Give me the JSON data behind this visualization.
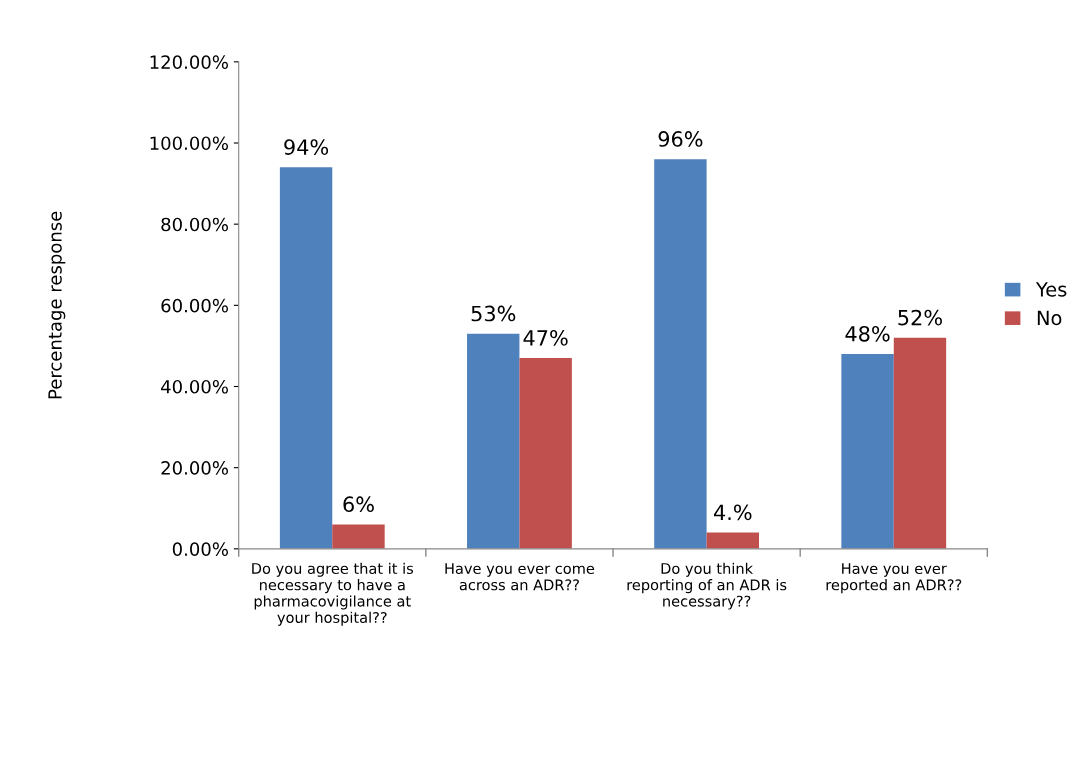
{
  "chart_data": {
    "type": "bar",
    "ylabel": "Percentage response",
    "categories": [
      "Do you agree that it is\nnecessary to have a\npharmacovigilance at\nyour hospital??",
      "Have you ever come\nacross an ADR??",
      "Do you think\nreporting of an ADR is\nnecessary??",
      "Have you ever\nreported an ADR??"
    ],
    "series": [
      {
        "name": "Yes",
        "color": "#4f81bd",
        "values": [
          94,
          53,
          96,
          48
        ],
        "value_labels": [
          "94%",
          "53%",
          "96%",
          "48%"
        ]
      },
      {
        "name": "No",
        "color": "#c0504d",
        "values": [
          6,
          47,
          4,
          52
        ],
        "value_labels": [
          "6%",
          "47%",
          "4.%",
          "52%"
        ]
      }
    ],
    "ylim": [
      0,
      120
    ],
    "yticks": [
      {
        "value": 0,
        "label": "0.00%"
      },
      {
        "value": 20,
        "label": "20.00%"
      },
      {
        "value": 40,
        "label": "40.00%"
      },
      {
        "value": 60,
        "label": "60.00%"
      },
      {
        "value": 80,
        "label": "80.00%"
      },
      {
        "value": 100,
        "label": "100.00%"
      },
      {
        "value": 120,
        "label": "120.00%"
      }
    ],
    "grid": false,
    "legend": "right"
  }
}
